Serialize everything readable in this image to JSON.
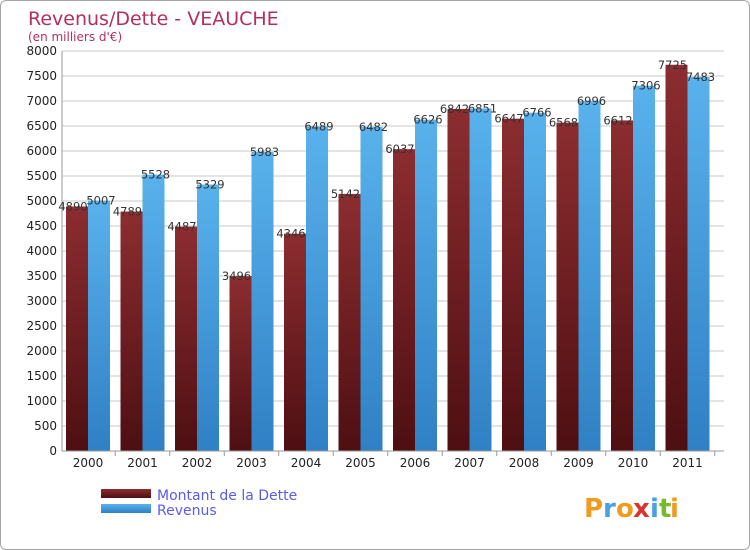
{
  "header": {
    "title": "Revenus/Dette - VEAUCHE",
    "subtitle": "(en milliers d'€)"
  },
  "logo": {
    "text": "Proxiti",
    "letters": [
      "P",
      "r",
      "o",
      "x",
      "i",
      "t",
      "i"
    ],
    "colors": [
      "#f29a1f",
      "#48a1e0",
      "#f29a1f",
      "#d9342b",
      "#48a1e0",
      "#77b82c",
      "#f29a1f"
    ]
  },
  "colors": {
    "debt": "#7a2426",
    "revenue": "#48a3e4",
    "grid": "#c8c8c8",
    "title": "#b3305a",
    "legend_text": "#5a5af0"
  },
  "chart_data": {
    "type": "bar",
    "title": "Revenus/Dette - VEAUCHE",
    "subtitle": "(en milliers d'€)",
    "xlabel": "",
    "ylabel": "",
    "categories": [
      "2000",
      "2001",
      "2002",
      "2003",
      "2004",
      "2005",
      "2006",
      "2007",
      "2008",
      "2009",
      "2010",
      "2011"
    ],
    "series": [
      {
        "name": "Montant de la Dette",
        "values": [
          4890,
          4789,
          4487,
          3496,
          4346,
          5142,
          6037,
          6842,
          6647,
          6568,
          6612,
          7725
        ]
      },
      {
        "name": "Revenus",
        "values": [
          5007,
          5528,
          5329,
          5983,
          6489,
          6482,
          6626,
          6851,
          6766,
          6996,
          7306,
          7483
        ]
      }
    ],
    "ylim": [
      0,
      8000
    ],
    "yticks": [
      0,
      500,
      1000,
      1500,
      2000,
      2500,
      3000,
      3500,
      4000,
      4500,
      5000,
      5500,
      6000,
      6500,
      7000,
      7500,
      8000
    ],
    "grid": true,
    "legend_position": "bottom-left"
  }
}
